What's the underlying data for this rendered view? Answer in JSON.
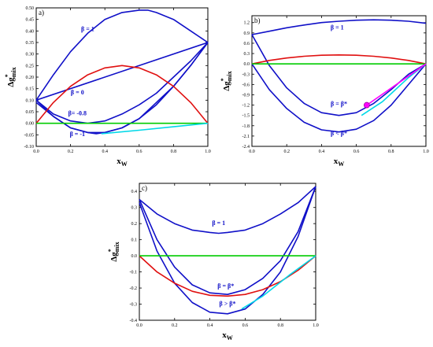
{
  "chart_data": [
    {
      "type": "line",
      "panel_label": "a)",
      "xlabel": "x",
      "xlabel_sub": "W",
      "ylabel_prefix": "Δg",
      "ylabel_sup": "*",
      "ylabel_sub": "mix",
      "xlim": [
        0,
        1.0
      ],
      "ylim": [
        -0.1,
        0.5
      ],
      "xticks": [
        0.0,
        0.2,
        0.4,
        0.6,
        0.8,
        1.0
      ],
      "xtick_labels": [
        "0.0",
        "0.2",
        "0.4",
        "0.6",
        "0.8",
        "1.0"
      ],
      "yticks": [
        -0.1,
        -0.05,
        0.0,
        0.05,
        0.1,
        0.15,
        0.2,
        0.25,
        0.3,
        0.35,
        0.4,
        0.45,
        0.5
      ],
      "ytick_labels": [
        "-0.10",
        "-0.05",
        "0.00",
        "0.05",
        "0.10",
        "0.15",
        "0.20",
        "0.25",
        "0.30",
        "0.35",
        "0.40",
        "0.45",
        "0.50"
      ],
      "series": [
        {
          "color": "#1010c8",
          "x": [
            0,
            0.1,
            0.2,
            0.3,
            0.4,
            0.5,
            0.6,
            0.65,
            0.7,
            0.8,
            0.9,
            1.0
          ],
          "y": [
            0.1,
            0.21,
            0.31,
            0.39,
            0.45,
            0.48,
            0.49,
            0.49,
            0.48,
            0.45,
            0.4,
            0.35
          ]
        },
        {
          "color": "#1010c8",
          "x": [
            0,
            1.0
          ],
          "y": [
            0.1,
            0.35
          ]
        },
        {
          "color": "#1010c8",
          "x": [
            0,
            0.1,
            0.2,
            0.3,
            0.4,
            0.5,
            0.6,
            0.7,
            0.8,
            0.9,
            1.0
          ],
          "y": [
            0.1,
            0.04,
            0.01,
            0.0,
            0.01,
            0.04,
            0.08,
            0.13,
            0.2,
            0.27,
            0.35
          ]
        },
        {
          "color": "#1010c8",
          "x": [
            0,
            0.1,
            0.2,
            0.3,
            0.4,
            0.5,
            0.6,
            0.7,
            0.8,
            0.9,
            1.0
          ],
          "y": [
            0.1,
            0.03,
            -0.02,
            -0.04,
            -0.04,
            -0.02,
            0.02,
            0.08,
            0.16,
            0.25,
            0.35
          ]
        },
        {
          "color": "#1010c8",
          "x": [
            0,
            0.1,
            0.2,
            0.3,
            0.35,
            0.4,
            0.5,
            0.6,
            0.7,
            0.8,
            0.9,
            1.0
          ],
          "y": [
            0.09,
            0.03,
            -0.02,
            -0.04,
            -0.045,
            -0.04,
            -0.02,
            0.02,
            0.09,
            0.16,
            0.25,
            0.35
          ]
        },
        {
          "color": "#e01010",
          "x": [
            0,
            0.1,
            0.2,
            0.3,
            0.4,
            0.5,
            0.6,
            0.7,
            0.8,
            0.9,
            1.0
          ],
          "y": [
            0.0,
            0.09,
            0.16,
            0.21,
            0.24,
            0.25,
            0.24,
            0.21,
            0.16,
            0.09,
            0.0
          ]
        },
        {
          "color": "#00cc00",
          "x": [
            0,
            1.0
          ],
          "y": [
            0.0,
            0.0
          ]
        },
        {
          "color": "#00d8e8",
          "x": [
            0.38,
            0.6,
            0.8,
            1.0
          ],
          "y": [
            -0.045,
            -0.03,
            -0.015,
            0.0
          ]
        }
      ],
      "annotations": [
        {
          "text": "β = 1",
          "x": 0.3,
          "y": 0.4
        },
        {
          "text": "β = 0",
          "x": 0.24,
          "y": 0.125
        },
        {
          "text": "β= -0.8",
          "x": 0.24,
          "y": 0.035
        },
        {
          "text": "β = -1",
          "x": 0.24,
          "y": -0.055
        }
      ]
    },
    {
      "type": "line",
      "panel_label": "b)",
      "xlabel": "x",
      "xlabel_sub": "W",
      "ylabel_prefix": "Δg",
      "ylabel_sup": "*",
      "ylabel_sub": "mix",
      "xlim": [
        0,
        1.0
      ],
      "ylim": [
        -2.4,
        1.4
      ],
      "xticks": [
        0.0,
        0.2,
        0.4,
        0.6,
        0.8,
        1.0
      ],
      "xtick_labels": [
        "0.0",
        "0.2",
        "0.4",
        "0.6",
        "0.8",
        "1.0"
      ],
      "yticks": [
        -2.4,
        -2.1,
        -1.8,
        -1.5,
        -1.2,
        -0.9,
        -0.6,
        -0.3,
        0.0,
        0.3,
        0.6,
        0.9,
        1.2
      ],
      "ytick_labels": [
        "-2.4",
        "-2.1",
        "-1.8",
        "-1.5",
        "-1.2",
        "-0.9",
        "-0.6",
        "-0.3",
        "0.0",
        "0.3",
        "0.6",
        "0.9",
        "1.2"
      ],
      "series": [
        {
          "color": "#1010c8",
          "x": [
            0,
            0.1,
            0.2,
            0.3,
            0.4,
            0.5,
            0.6,
            0.7,
            0.8,
            0.9,
            1.0
          ],
          "y": [
            0.85,
            0.95,
            1.05,
            1.13,
            1.2,
            1.24,
            1.27,
            1.28,
            1.27,
            1.24,
            1.18
          ]
        },
        {
          "color": "#1010c8",
          "x": [
            0,
            0.1,
            0.2,
            0.3,
            0.4,
            0.5,
            0.6,
            0.7,
            0.8,
            0.9,
            1.0
          ],
          "y": [
            0.85,
            -0.05,
            -0.7,
            -1.15,
            -1.42,
            -1.5,
            -1.42,
            -1.15,
            -0.75,
            -0.3,
            0.0
          ]
        },
        {
          "color": "#1010c8",
          "x": [
            0,
            0.1,
            0.2,
            0.3,
            0.4,
            0.5,
            0.6,
            0.7,
            0.8,
            0.9,
            1.0
          ],
          "y": [
            0.0,
            -0.75,
            -1.3,
            -1.7,
            -1.92,
            -1.98,
            -1.9,
            -1.65,
            -1.2,
            -0.6,
            0.0
          ]
        },
        {
          "color": "#e01010",
          "x": [
            0,
            0.1,
            0.2,
            0.3,
            0.4,
            0.5,
            0.6,
            0.7,
            0.8,
            0.9,
            1.0
          ],
          "y": [
            0.0,
            0.1,
            0.17,
            0.22,
            0.25,
            0.26,
            0.25,
            0.22,
            0.17,
            0.1,
            0.0
          ]
        },
        {
          "color": "#00cc00",
          "x": [
            0,
            1.0
          ],
          "y": [
            0.0,
            0.0
          ]
        },
        {
          "color": "#00d8e8",
          "x": [
            0.63,
            0.75,
            0.9,
            1.0
          ],
          "y": [
            -1.5,
            -1.1,
            -0.4,
            0.0
          ]
        },
        {
          "color": "#ff00ff",
          "x": [
            0.66,
            1.0
          ],
          "y": [
            -1.2,
            0.0
          ]
        }
      ],
      "markers": [
        {
          "color": "#ff00ff",
          "x": 0.66,
          "y": -1.2
        }
      ],
      "annotations": [
        {
          "text": "β = 1",
          "x": 0.49,
          "y": 1.0
        },
        {
          "text": "β = β*",
          "x": 0.5,
          "y": -1.22
        },
        {
          "text": "β < β*",
          "x": 0.5,
          "y": -2.08
        }
      ]
    },
    {
      "type": "line",
      "panel_label": "c)",
      "xlabel": "x",
      "xlabel_sub": "W",
      "ylabel_prefix": "Δg",
      "ylabel_sup": "*",
      "ylabel_sub": "mix",
      "xlim": [
        0,
        1.0
      ],
      "ylim": [
        -0.4,
        0.45
      ],
      "xticks": [
        0.0,
        0.2,
        0.4,
        0.6,
        0.8,
        1.0
      ],
      "xtick_labels": [
        "0.0",
        "0.2",
        "0.4",
        "0.6",
        "0.8",
        "1.0"
      ],
      "yticks": [
        -0.4,
        -0.3,
        -0.2,
        -0.1,
        0.0,
        0.1,
        0.2,
        0.3,
        0.4
      ],
      "ytick_labels": [
        "-0.4",
        "-0.3",
        "-0.2",
        "-0.1",
        "0.0",
        "0.1",
        "0.2",
        "0.3",
        "0.4"
      ],
      "series": [
        {
          "color": "#1010c8",
          "x": [
            0,
            0.1,
            0.2,
            0.3,
            0.4,
            0.45,
            0.5,
            0.6,
            0.7,
            0.8,
            0.9,
            1.0
          ],
          "y": [
            0.35,
            0.26,
            0.2,
            0.16,
            0.145,
            0.14,
            0.145,
            0.16,
            0.2,
            0.26,
            0.33,
            0.43
          ]
        },
        {
          "color": "#1010c8",
          "x": [
            0,
            0.1,
            0.2,
            0.3,
            0.4,
            0.5,
            0.6,
            0.7,
            0.8,
            0.9,
            1.0
          ],
          "y": [
            0.35,
            0.1,
            -0.07,
            -0.18,
            -0.23,
            -0.24,
            -0.21,
            -0.14,
            -0.03,
            0.15,
            0.43
          ]
        },
        {
          "color": "#1010c8",
          "x": [
            0,
            0.1,
            0.2,
            0.3,
            0.4,
            0.5,
            0.6,
            0.7,
            0.8,
            0.9,
            1.0
          ],
          "y": [
            0.33,
            0.03,
            -0.17,
            -0.29,
            -0.35,
            -0.36,
            -0.33,
            -0.24,
            -0.1,
            0.12,
            0.43
          ]
        },
        {
          "color": "#e01010",
          "x": [
            0,
            0.1,
            0.2,
            0.3,
            0.4,
            0.5,
            0.6,
            0.7,
            0.8,
            0.9,
            1.0
          ],
          "y": [
            0.0,
            -0.1,
            -0.17,
            -0.22,
            -0.245,
            -0.25,
            -0.24,
            -0.21,
            -0.16,
            -0.09,
            0.0
          ]
        },
        {
          "color": "#00cc00",
          "x": [
            0,
            1.0
          ],
          "y": [
            0.0,
            0.0
          ]
        },
        {
          "color": "#00d8e8",
          "x": [
            0.58,
            0.7,
            0.85,
            1.0
          ],
          "y": [
            -0.33,
            -0.25,
            -0.12,
            0.0
          ]
        }
      ],
      "annotations": [
        {
          "text": "β = 1",
          "x": 0.45,
          "y": 0.19
        },
        {
          "text": "β = β*",
          "x": 0.49,
          "y": -0.2
        },
        {
          "text": "β > β*",
          "x": 0.5,
          "y": -0.31
        }
      ]
    }
  ]
}
